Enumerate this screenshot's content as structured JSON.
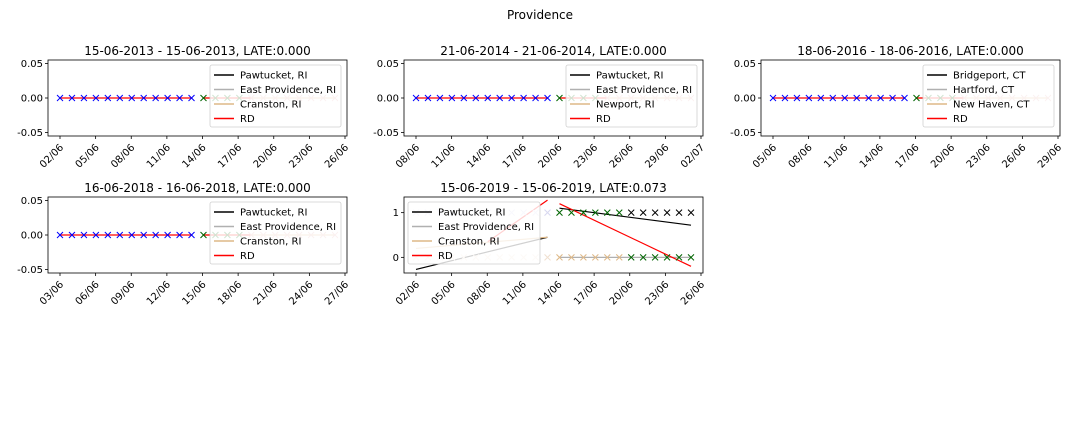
{
  "figure": {
    "suptitle": "Providence"
  },
  "colors": {
    "line1": "#000000",
    "line2": "#b0b0b0",
    "line3": "#deb887",
    "rd": "#ff0000",
    "treat_marker": "#006400",
    "control_marker": "#0000ff"
  },
  "chart_data": [
    {
      "type": "line",
      "title": "15-06-2013 - 15-06-2013, LATE:0.000",
      "yticks": [
        "0.05",
        "0.00",
        "-0.05"
      ],
      "ylim": [
        -0.055,
        0.055
      ],
      "x_ticks": [
        "02/06",
        "05/06",
        "08/06",
        "11/06",
        "14/06",
        "17/06",
        "20/06",
        "23/06",
        "26/06"
      ],
      "legend": [
        "Pawtucket, RI",
        "East Providence, RI",
        "Cranston, RI",
        "RD"
      ],
      "legend_position": "upper right",
      "series": [
        {
          "name": "Pawtucket, RI",
          "values": [
            0,
            0
          ]
        },
        {
          "name": "East Providence, RI",
          "values": [
            0,
            0
          ]
        },
        {
          "name": "Cranston, RI",
          "values": [
            0,
            0
          ]
        },
        {
          "name": "RD",
          "values": [
            0,
            0
          ]
        }
      ]
    },
    {
      "type": "line",
      "title": "21-06-2014 - 21-06-2014, LATE:0.000",
      "yticks": [
        "0.05",
        "0.00",
        "-0.05"
      ],
      "ylim": [
        -0.055,
        0.055
      ],
      "x_ticks": [
        "08/06",
        "11/06",
        "14/06",
        "17/06",
        "20/06",
        "23/06",
        "26/06",
        "29/06",
        "02/07"
      ],
      "legend": [
        "Pawtucket, RI",
        "East Providence, RI",
        "Newport, RI",
        "RD"
      ],
      "legend_position": "upper right",
      "series": [
        {
          "name": "Pawtucket, RI",
          "values": [
            0,
            0
          ]
        },
        {
          "name": "East Providence, RI",
          "values": [
            0,
            0
          ]
        },
        {
          "name": "Newport, RI",
          "values": [
            0,
            0
          ]
        },
        {
          "name": "RD",
          "values": [
            0,
            0
          ]
        }
      ]
    },
    {
      "type": "line",
      "title": "18-06-2016 - 18-06-2016, LATE:0.000",
      "yticks": [
        "0.05",
        "0.00",
        "-0.05"
      ],
      "ylim": [
        -0.055,
        0.055
      ],
      "x_ticks": [
        "05/06",
        "08/06",
        "11/06",
        "14/06",
        "17/06",
        "20/06",
        "23/06",
        "26/06",
        "29/06"
      ],
      "legend": [
        "Bridgeport, CT",
        "Hartford, CT",
        "New Haven, CT",
        "RD"
      ],
      "legend_position": "upper right",
      "series": [
        {
          "name": "Bridgeport, CT",
          "values": [
            0,
            0
          ]
        },
        {
          "name": "Hartford, CT",
          "values": [
            0,
            0
          ]
        },
        {
          "name": "New Haven, CT",
          "values": [
            0,
            0
          ]
        },
        {
          "name": "RD",
          "values": [
            0,
            0
          ]
        }
      ]
    },
    {
      "type": "line",
      "title": "16-06-2018 - 16-06-2018, LATE:0.000",
      "yticks": [
        "0.05",
        "0.00",
        "-0.05"
      ],
      "ylim": [
        -0.055,
        0.055
      ],
      "x_ticks": [
        "03/06",
        "06/06",
        "09/06",
        "12/06",
        "15/06",
        "18/06",
        "21/06",
        "24/06",
        "27/06"
      ],
      "legend": [
        "Pawtucket, RI",
        "East Providence, RI",
        "Cranston, RI",
        "RD"
      ],
      "legend_position": "upper right",
      "series": [
        {
          "name": "Pawtucket, RI",
          "values": [
            0,
            0
          ]
        },
        {
          "name": "East Providence, RI",
          "values": [
            0,
            0
          ]
        },
        {
          "name": "Cranston, RI",
          "values": [
            0,
            0
          ]
        },
        {
          "name": "RD",
          "values": [
            0,
            0
          ]
        }
      ]
    },
    {
      "type": "line",
      "title": "15-06-2019 - 15-06-2019, LATE:0.073",
      "yticks": [
        "1",
        "0"
      ],
      "ylim": [
        -0.35,
        1.35
      ],
      "x_ticks": [
        "02/06",
        "05/06",
        "08/06",
        "11/06",
        "14/06",
        "17/06",
        "20/06",
        "23/06",
        "26/06"
      ],
      "legend": [
        "Pawtucket, RI",
        "East Providence, RI",
        "Cranston, RI",
        "RD"
      ],
      "legend_position": "upper left",
      "series": [
        {
          "name": "Pawtucket, RI",
          "values": [
            -0.27,
            0.45,
            1.1,
            0.72
          ]
        },
        {
          "name": "East Providence, RI",
          "values": [
            0,
            0
          ]
        },
        {
          "name": "Cranston, RI",
          "values": [
            0.2,
            0.45
          ]
        },
        {
          "name": "RD",
          "values": [
            1.28,
            1.2,
            -0.2
          ]
        }
      ]
    }
  ]
}
